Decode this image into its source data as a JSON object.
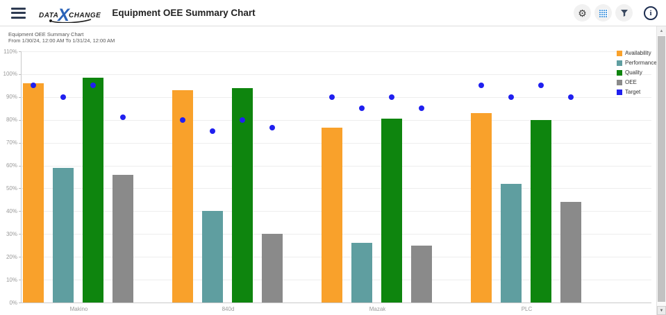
{
  "header": {
    "title": "Equipment OEE Summary Chart",
    "logo": {
      "part1": "DATA",
      "x": "X",
      "part2": "CHANGE"
    },
    "icons": {
      "menu": "hamburger-menu",
      "settings": "gear",
      "table": "data-grid",
      "filter": "funnel",
      "info": "info-circle"
    },
    "info_glyph": "i"
  },
  "colors": {
    "accent_blue": "#2b63b8",
    "grid_icon_blue": "#4f9ce0",
    "availability": "#F9A12B",
    "performance": "#5F9EA0",
    "quality": "#0E850E",
    "oee": "#8A8A8A",
    "target": "#2020EF"
  },
  "chart_data": {
    "type": "bar",
    "title": "Equipment OEE Summary Chart",
    "subtitle": "From 1/30/24, 12:00 AM To 1/31/24, 12:00 AM",
    "categories": [
      "Makino",
      "840d",
      "Mazak",
      "PLC"
    ],
    "series": [
      {
        "name": "Availability",
        "type": "bar",
        "color": "#F9A12B",
        "values": [
          96,
          93,
          76.5,
          83
        ]
      },
      {
        "name": "Performance",
        "type": "bar",
        "color": "#5F9EA0",
        "values": [
          59,
          40,
          26,
          52
        ]
      },
      {
        "name": "Quality",
        "type": "bar",
        "color": "#0E850E",
        "values": [
          98.5,
          94,
          80.5,
          80
        ]
      },
      {
        "name": "OEE",
        "type": "bar",
        "color": "#8A8A8A",
        "values": [
          56,
          30,
          25,
          44
        ]
      },
      {
        "name": "Target",
        "type": "point",
        "color": "#2020EF",
        "values_per_bar": [
          [
            95,
            90,
            95,
            81
          ],
          [
            80,
            75,
            80,
            76.5
          ],
          [
            90,
            85,
            90,
            85
          ],
          [
            95,
            90,
            95,
            90
          ]
        ]
      }
    ],
    "ylim": [
      0,
      110
    ],
    "ytick_step": 10,
    "ytick_suffix": "%",
    "grid": true,
    "legend_position": "right-top",
    "legend_entries": [
      "Availability",
      "Performance",
      "Quality",
      "OEE",
      "Target"
    ]
  },
  "scrollbar": {
    "up_glyph": "▲",
    "down_glyph": "▼"
  }
}
